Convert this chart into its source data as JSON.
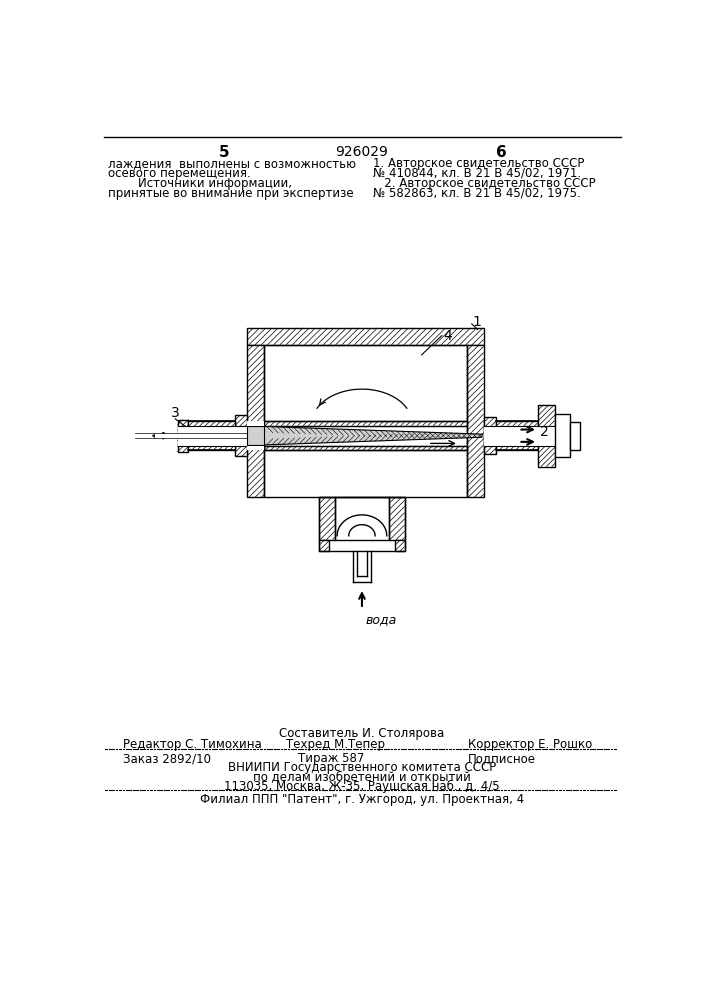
{
  "page_num_left": "5",
  "patent_num": "926029",
  "page_num_right": "6",
  "top_left_line1": "лаждения  выполнены с возможностью",
  "top_left_line2": "осевого перемещения.",
  "top_left_line3": "        Источники информации,",
  "top_left_line4": "принятые во внимание при экспертизе",
  "top_right_line1": "1. Авторское свидетельство СССР",
  "top_right_line2": "№ 410844, кл. В 21 В 45/02, 1971.",
  "top_right_line3": "   2. Авторское свидетельство СССР",
  "top_right_line4": "№ 582863, кл. В 21 В 45/02, 1975.",
  "water_label": "вода",
  "lbl1": "1",
  "lbl2": "2",
  "lbl3": "3",
  "lbl4": "4",
  "composer": "Составитель И. Столярова",
  "editor": "Редактор С. Тимохина",
  "techred": "Техред М.Тепер",
  "corrector": "Корректор Е. Рошко",
  "order": "Заказ 2892/10",
  "tirazh": "Тираж 587",
  "podpisnoe": "Подписное",
  "vniip1": "ВНИИПИ Государственного комитета СССР",
  "vniip2": "по делам изобретений и открытий",
  "vniip3": "113035, Москва, Ж-35, Раушская наб., д. 4/5",
  "filial": "Филиал ППП \"Патент\", г. Ужгород, ул. Проектная, 4"
}
